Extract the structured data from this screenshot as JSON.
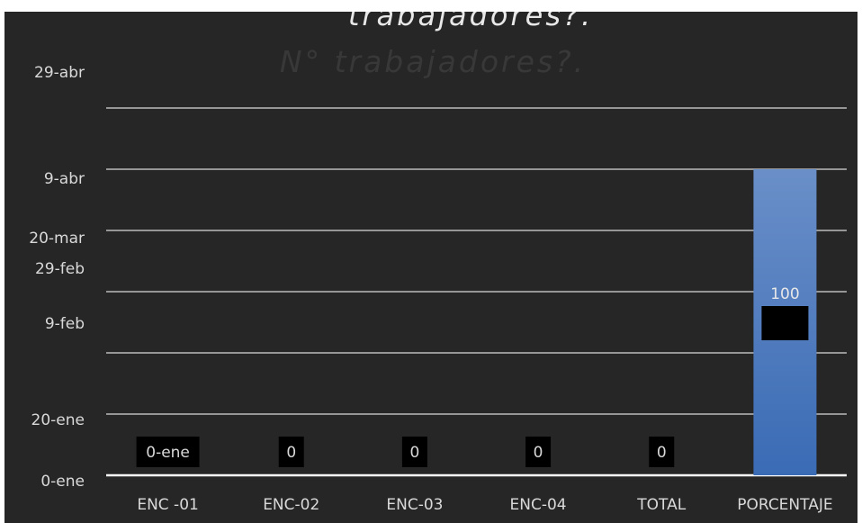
{
  "chart_data": {
    "type": "bar",
    "title": "trabajadores?.",
    "subtitle": "N° trabajadores?.",
    "categories": [
      "ENC -01",
      "ENC-02",
      "ENC-03",
      "ENC-04",
      "TOTAL",
      "PORCENTAJE"
    ],
    "series": [
      {
        "values": [
          0,
          0,
          0,
          0,
          0,
          100
        ],
        "data_labels": [
          "0-ene",
          "0",
          "0",
          "0",
          "0",
          "100"
        ]
      }
    ],
    "y_tick_labels": [
      {
        "label": "0-ene",
        "value": 0
      },
      {
        "label": "20-ene",
        "value": 20
      },
      {
        "label": "9-feb",
        "value": 40
      },
      {
        "label": "29-feb",
        "value": 60
      },
      {
        "label": "20-mar",
        "value": 80
      },
      {
        "label": "9-abr",
        "value": 100
      },
      {
        "label": "29-abr",
        "value": 120
      }
    ],
    "ylim": [
      0,
      120
    ],
    "gridlines": [
      20,
      40,
      60,
      80,
      100,
      120
    ],
    "grid": true,
    "legend": "none",
    "colors": {
      "background": "#262626",
      "bar_top": "#6a8fc8",
      "bar_bottom": "#3a6bb5",
      "grid": "#d9d9d9",
      "text": "#d9d9d9",
      "title": "#e8e8e8",
      "subtitle": "#383838",
      "label_box": "#000000",
      "label_text": "#d9d9d9",
      "label_text_on_bar": "#e8e8e8"
    }
  }
}
